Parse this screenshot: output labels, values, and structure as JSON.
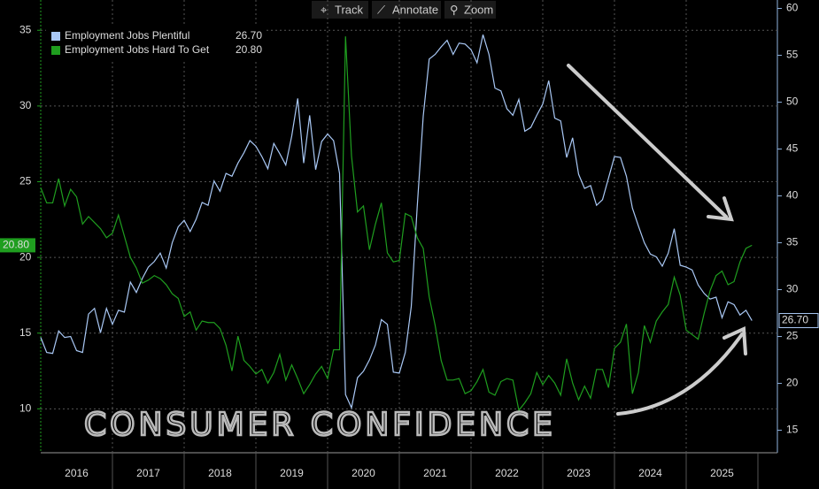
{
  "toolbar": [
    "Track",
    "Annotate",
    "Zoom"
  ],
  "annotation": "CONSUMER CONFIDENCE",
  "chart_data": {
    "type": "line",
    "categories": [
      "2016",
      null,
      null,
      null,
      null,
      null,
      null,
      null,
      null,
      null,
      null,
      null,
      "2017",
      null,
      null,
      null,
      null,
      null,
      null,
      null,
      null,
      null,
      null,
      null,
      "2018",
      null,
      null,
      null,
      null,
      null,
      null,
      null,
      null,
      null,
      null,
      null,
      "2019",
      null,
      null,
      null,
      null,
      null,
      null,
      null,
      null,
      null,
      null,
      null,
      "2020",
      null,
      null,
      null,
      null,
      null,
      null,
      null,
      null,
      null,
      null,
      null,
      "2021",
      null,
      null,
      null,
      null,
      null,
      null,
      null,
      null,
      null,
      null,
      null,
      "2022",
      null,
      null,
      null,
      null,
      null,
      null,
      null,
      null,
      null,
      null,
      null,
      "2023",
      null,
      null,
      null,
      null,
      null,
      null,
      null,
      null,
      null,
      null,
      null,
      "2024",
      null,
      null,
      null,
      null,
      null,
      null,
      null,
      null,
      null,
      null,
      null,
      "2025",
      null,
      null,
      null,
      null,
      null,
      null,
      null,
      null,
      null,
      null,
      null
    ],
    "series": [
      {
        "name": "Employment Jobs Plentiful",
        "color": "#a9c8f5",
        "axis": "y2",
        "last_label": "26.70",
        "values": [
          24.9,
          23.3,
          23.2,
          25.6,
          24.9,
          25.0,
          23.5,
          23.3,
          27.4,
          28.0,
          25.4,
          28.0,
          26.3,
          27.8,
          27.6,
          30.8,
          29.7,
          31.2,
          32.4,
          33.0,
          33.9,
          32.3,
          35.0,
          36.7,
          37.4,
          36.2,
          37.5,
          39.3,
          39.0,
          41.6,
          40.5,
          42.4,
          42.1,
          43.5,
          44.6,
          45.9,
          45.3,
          44.2,
          42.9,
          45.6,
          44.5,
          43.3,
          46.4,
          50.4,
          43.5,
          48.6,
          42.8,
          45.8,
          46.6,
          45.9,
          42.4,
          18.8,
          17.4,
          20.6,
          21.3,
          22.5,
          24.1,
          26.8,
          26.3,
          21.2,
          21.1,
          23.3,
          28.2,
          38.9,
          48.5,
          54.6,
          55.1,
          55.9,
          56.6,
          55.1,
          56.3,
          56.2,
          55.6,
          54.2,
          57.2,
          55.1,
          51.5,
          51.2,
          49.3,
          48.6,
          50.3,
          46.9,
          47.3,
          48.6,
          49.8,
          52.3,
          48.3,
          48.0,
          44.1,
          46.2,
          42.3,
          40.8,
          41.1,
          39.0,
          39.6,
          41.9,
          44.2,
          44.1,
          42.1,
          38.7,
          36.8,
          35.0,
          33.8,
          33.5,
          32.5,
          33.9,
          36.5,
          32.6,
          32.4,
          32.1,
          30.5,
          29.6,
          29.0,
          29.2,
          27.0,
          28.7,
          28.4,
          27.3,
          27.8,
          26.7
        ]
      },
      {
        "name": "Employment Jobs Hard To Get",
        "color": "#1f9e1f",
        "last_label": "20.80",
        "values": [
          24.6,
          23.6,
          23.6,
          25.2,
          23.4,
          24.5,
          24.0,
          22.2,
          22.7,
          22.3,
          21.9,
          21.3,
          21.6,
          22.8,
          21.4,
          20.0,
          19.3,
          18.3,
          18.5,
          18.8,
          18.6,
          18.2,
          17.6,
          17.3,
          16.1,
          16.4,
          15.2,
          15.8,
          15.7,
          15.7,
          15.3,
          14.2,
          12.5,
          14.8,
          13.2,
          12.8,
          12.3,
          12.6,
          11.7,
          12.4,
          13.6,
          11.9,
          12.9,
          12.0,
          11.0,
          11.6,
          12.3,
          12.8,
          12.0,
          13.9,
          13.9,
          34.6,
          26.7,
          23.0,
          23.4,
          20.5,
          22.2,
          23.6,
          20.3,
          19.7,
          19.8,
          22.9,
          22.7,
          21.3,
          20.6,
          17.4,
          15.5,
          13.2,
          11.9,
          11.9,
          12.0,
          11.0,
          11.2,
          11.8,
          12.6,
          11.1,
          10.9,
          11.8,
          12.0,
          11.9,
          9.9,
          10.4,
          11.0,
          12.4,
          11.6,
          12.2,
          11.7,
          10.9,
          13.3,
          11.7,
          10.6,
          11.5,
          10.7,
          12.6,
          12.6,
          11.4,
          14.0,
          14.4,
          15.6,
          11.0,
          12.4,
          15.5,
          14.4,
          15.8,
          16.4,
          16.9,
          18.7,
          17.5,
          15.2,
          14.9,
          14.6,
          16.3,
          17.8,
          18.8,
          19.1,
          18.2,
          18.4,
          19.7,
          20.6,
          20.8
        ]
      }
    ],
    "ylim": [
      7.1,
      37
    ],
    "yticks": [
      10,
      15,
      20,
      25,
      30,
      35
    ],
    "y2lim": [
      12.6,
      60.9
    ],
    "y2ticks": [
      15,
      20,
      25,
      30,
      35,
      40,
      45,
      50,
      55,
      60
    ],
    "grid": true
  }
}
